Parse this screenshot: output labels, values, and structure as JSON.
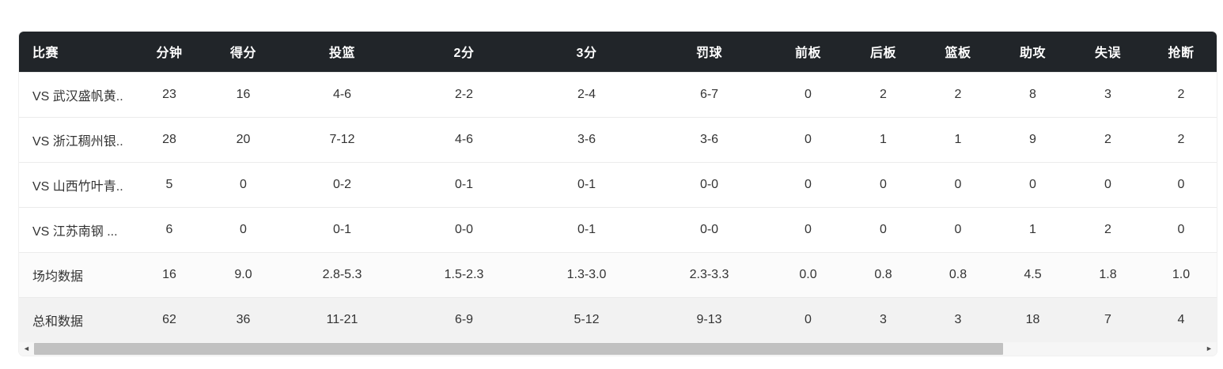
{
  "table": {
    "columns": [
      {
        "key": "match",
        "label": "比赛"
      },
      {
        "key": "minutes",
        "label": "分钟"
      },
      {
        "key": "points",
        "label": "得分"
      },
      {
        "key": "field_goals",
        "label": "投篮"
      },
      {
        "key": "two_pointers",
        "label": "2分"
      },
      {
        "key": "three_pointers",
        "label": "3分"
      },
      {
        "key": "free_throws",
        "label": "罚球"
      },
      {
        "key": "offensive_rebounds",
        "label": "前板"
      },
      {
        "key": "defensive_rebounds",
        "label": "后板"
      },
      {
        "key": "rebounds",
        "label": "篮板"
      },
      {
        "key": "assists",
        "label": "助攻"
      },
      {
        "key": "turnovers",
        "label": "失误"
      },
      {
        "key": "steals",
        "label": "抢断"
      }
    ],
    "rows": [
      {
        "type": "match",
        "cells": [
          "VS 武汉盛帆黄..",
          "23",
          "16",
          "4-6",
          "2-2",
          "2-4",
          "6-7",
          "0",
          "2",
          "2",
          "8",
          "3",
          "2"
        ]
      },
      {
        "type": "match",
        "cells": [
          "VS 浙江稠州银..",
          "28",
          "20",
          "7-12",
          "4-6",
          "3-6",
          "3-6",
          "0",
          "1",
          "1",
          "9",
          "2",
          "2"
        ]
      },
      {
        "type": "match",
        "cells": [
          "VS 山西竹叶青..",
          "5",
          "0",
          "0-2",
          "0-1",
          "0-1",
          "0-0",
          "0",
          "0",
          "0",
          "0",
          "0",
          "0"
        ]
      },
      {
        "type": "match",
        "cells": [
          "VS 江苏南钢 ...",
          "6",
          "0",
          "0-1",
          "0-0",
          "0-1",
          "0-0",
          "0",
          "0",
          "0",
          "1",
          "2",
          "0"
        ]
      },
      {
        "type": "average",
        "cells": [
          "场均数据",
          "16",
          "9.0",
          "2.8-5.3",
          "1.5-2.3",
          "1.3-3.0",
          "2.3-3.3",
          "0.0",
          "0.8",
          "0.8",
          "4.5",
          "1.8",
          "1.0"
        ]
      },
      {
        "type": "total",
        "cells": [
          "总和数据",
          "62",
          "36",
          "11-21",
          "6-9",
          "5-12",
          "9-13",
          "0",
          "3",
          "3",
          "18",
          "7",
          "4"
        ]
      }
    ]
  },
  "scrollbar": {
    "left_arrow_icon": "◄",
    "right_arrow_icon": "►"
  },
  "colors": {
    "header_bg": "#212529",
    "header_text": "#ffffff",
    "row_text": "#333333",
    "row_border": "#ebebeb",
    "average_row_bg": "#fbfbfb",
    "total_row_bg": "#f2f2f2",
    "scroll_thumb": "#c1c1c1",
    "scroll_track": "#f6f6f6"
  }
}
